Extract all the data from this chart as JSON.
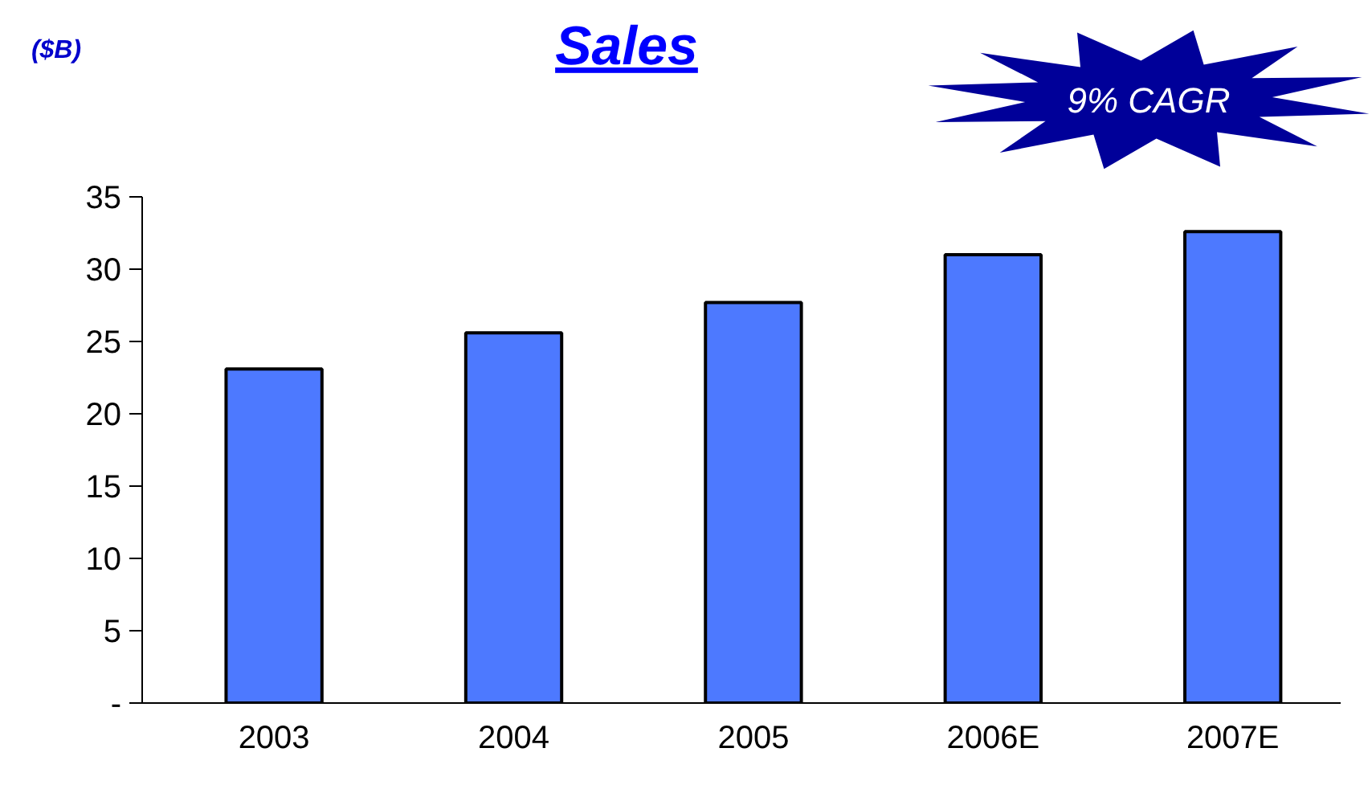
{
  "chart_data": {
    "type": "bar",
    "title": "Sales",
    "ylabel": "($B)",
    "categories": [
      "2003",
      "2004",
      "2005",
      "2006E",
      "2007E"
    ],
    "values": [
      23.1,
      25.6,
      27.7,
      31.0,
      32.6
    ],
    "color": "#4d79ff",
    "ylim": [
      0,
      35
    ],
    "yticks": [
      {
        "value": 0,
        "label": "-"
      },
      5,
      10,
      15,
      20,
      25,
      30,
      35
    ],
    "grid": false,
    "annotations": [
      "9% CAGR"
    ]
  }
}
